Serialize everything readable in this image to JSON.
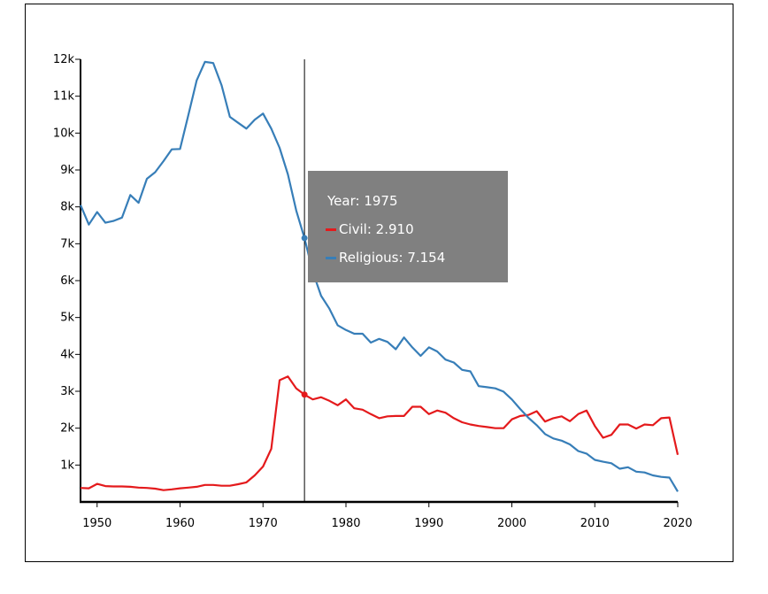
{
  "chart_data": {
    "type": "line",
    "title": "",
    "xlabel": "",
    "ylabel": "",
    "xlim": [
      1948,
      2020
    ],
    "ylim": [
      0,
      12
    ],
    "x_ticks": [
      "1950",
      "1960",
      "1970",
      "1980",
      "1990",
      "2000",
      "2010",
      "2020"
    ],
    "y_ticks": [
      "1k",
      "2k",
      "3k",
      "4k",
      "5k",
      "6k",
      "7k",
      "8k",
      "9k",
      "10k",
      "11k",
      "12k"
    ],
    "x_start": 1948,
    "series": [
      {
        "name": "Civil",
        "color": "#e41a1c",
        "values": [
          0.38,
          0.37,
          0.49,
          0.43,
          0.42,
          0.42,
          0.41,
          0.39,
          0.38,
          0.36,
          0.32,
          0.34,
          0.37,
          0.39,
          0.41,
          0.46,
          0.46,
          0.44,
          0.44,
          0.48,
          0.53,
          0.72,
          0.96,
          1.44,
          3.3,
          3.4,
          3.08,
          2.91,
          2.78,
          2.84,
          2.74,
          2.62,
          2.78,
          2.54,
          2.5,
          2.38,
          2.27,
          2.32,
          2.33,
          2.33,
          2.58,
          2.58,
          2.38,
          2.48,
          2.42,
          2.27,
          2.16,
          2.1,
          2.06,
          2.03,
          2.0,
          2.0,
          2.24,
          2.33,
          2.36,
          2.46,
          2.18,
          2.27,
          2.32,
          2.19,
          2.38,
          2.48,
          2.06,
          1.74,
          1.82,
          2.1,
          2.1,
          1.99,
          2.1,
          2.08,
          2.27,
          2.29,
          1.28
        ]
      },
      {
        "name": "Religious",
        "color": "#377eb8",
        "values": [
          8.05,
          7.52,
          7.86,
          7.57,
          7.62,
          7.71,
          8.32,
          8.11,
          8.76,
          8.94,
          9.24,
          9.56,
          9.57,
          10.49,
          11.43,
          11.93,
          11.9,
          11.3,
          10.44,
          10.28,
          10.12,
          10.36,
          10.53,
          10.12,
          9.6,
          8.88,
          7.9,
          7.154,
          6.24,
          5.59,
          5.24,
          4.79,
          4.66,
          4.56,
          4.56,
          4.32,
          4.42,
          4.34,
          4.14,
          4.46,
          4.19,
          3.96,
          4.19,
          4.08,
          3.86,
          3.78,
          3.58,
          3.54,
          3.14,
          3.11,
          3.08,
          2.99,
          2.78,
          2.52,
          2.28,
          2.08,
          1.84,
          1.72,
          1.66,
          1.56,
          1.38,
          1.31,
          1.14,
          1.09,
          1.05,
          0.9,
          0.94,
          0.82,
          0.8,
          0.72,
          0.68,
          0.66,
          0.28
        ]
      }
    ],
    "hover_year": 1975
  },
  "tooltip": {
    "year_label": "Year: 1975",
    "civil_label": "Civil: 2.910",
    "religious_label": "Religious: 7.154"
  }
}
